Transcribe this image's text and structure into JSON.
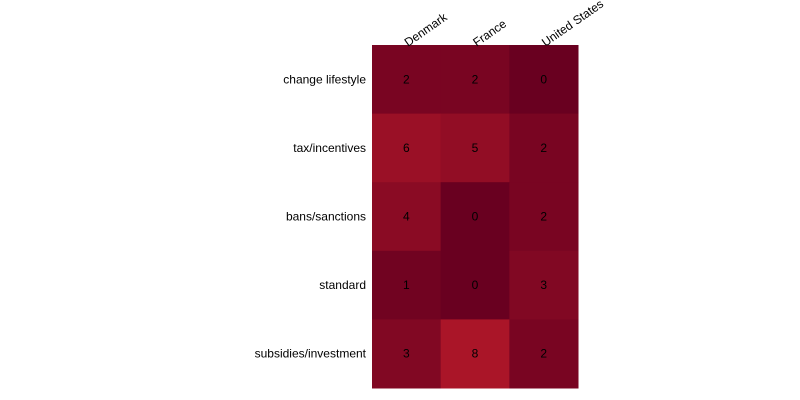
{
  "chart_data": {
    "type": "heatmap",
    "title": "",
    "xlabel": "",
    "ylabel": "",
    "columns": [
      "Denmark",
      "France",
      "United States"
    ],
    "rows": [
      "change lifestyle",
      "tax/incentives",
      "bans/sanctions",
      "standard",
      "subsidies/investment"
    ],
    "values": [
      [
        2,
        2,
        0
      ],
      [
        6,
        5,
        2
      ],
      [
        4,
        0,
        2
      ],
      [
        1,
        0,
        3
      ],
      [
        3,
        8,
        2
      ]
    ],
    "value_range": [
      0,
      8
    ],
    "color_scale": {
      "low": "#690020",
      "high": "#aa1528"
    },
    "legend": "none",
    "grid": false
  }
}
